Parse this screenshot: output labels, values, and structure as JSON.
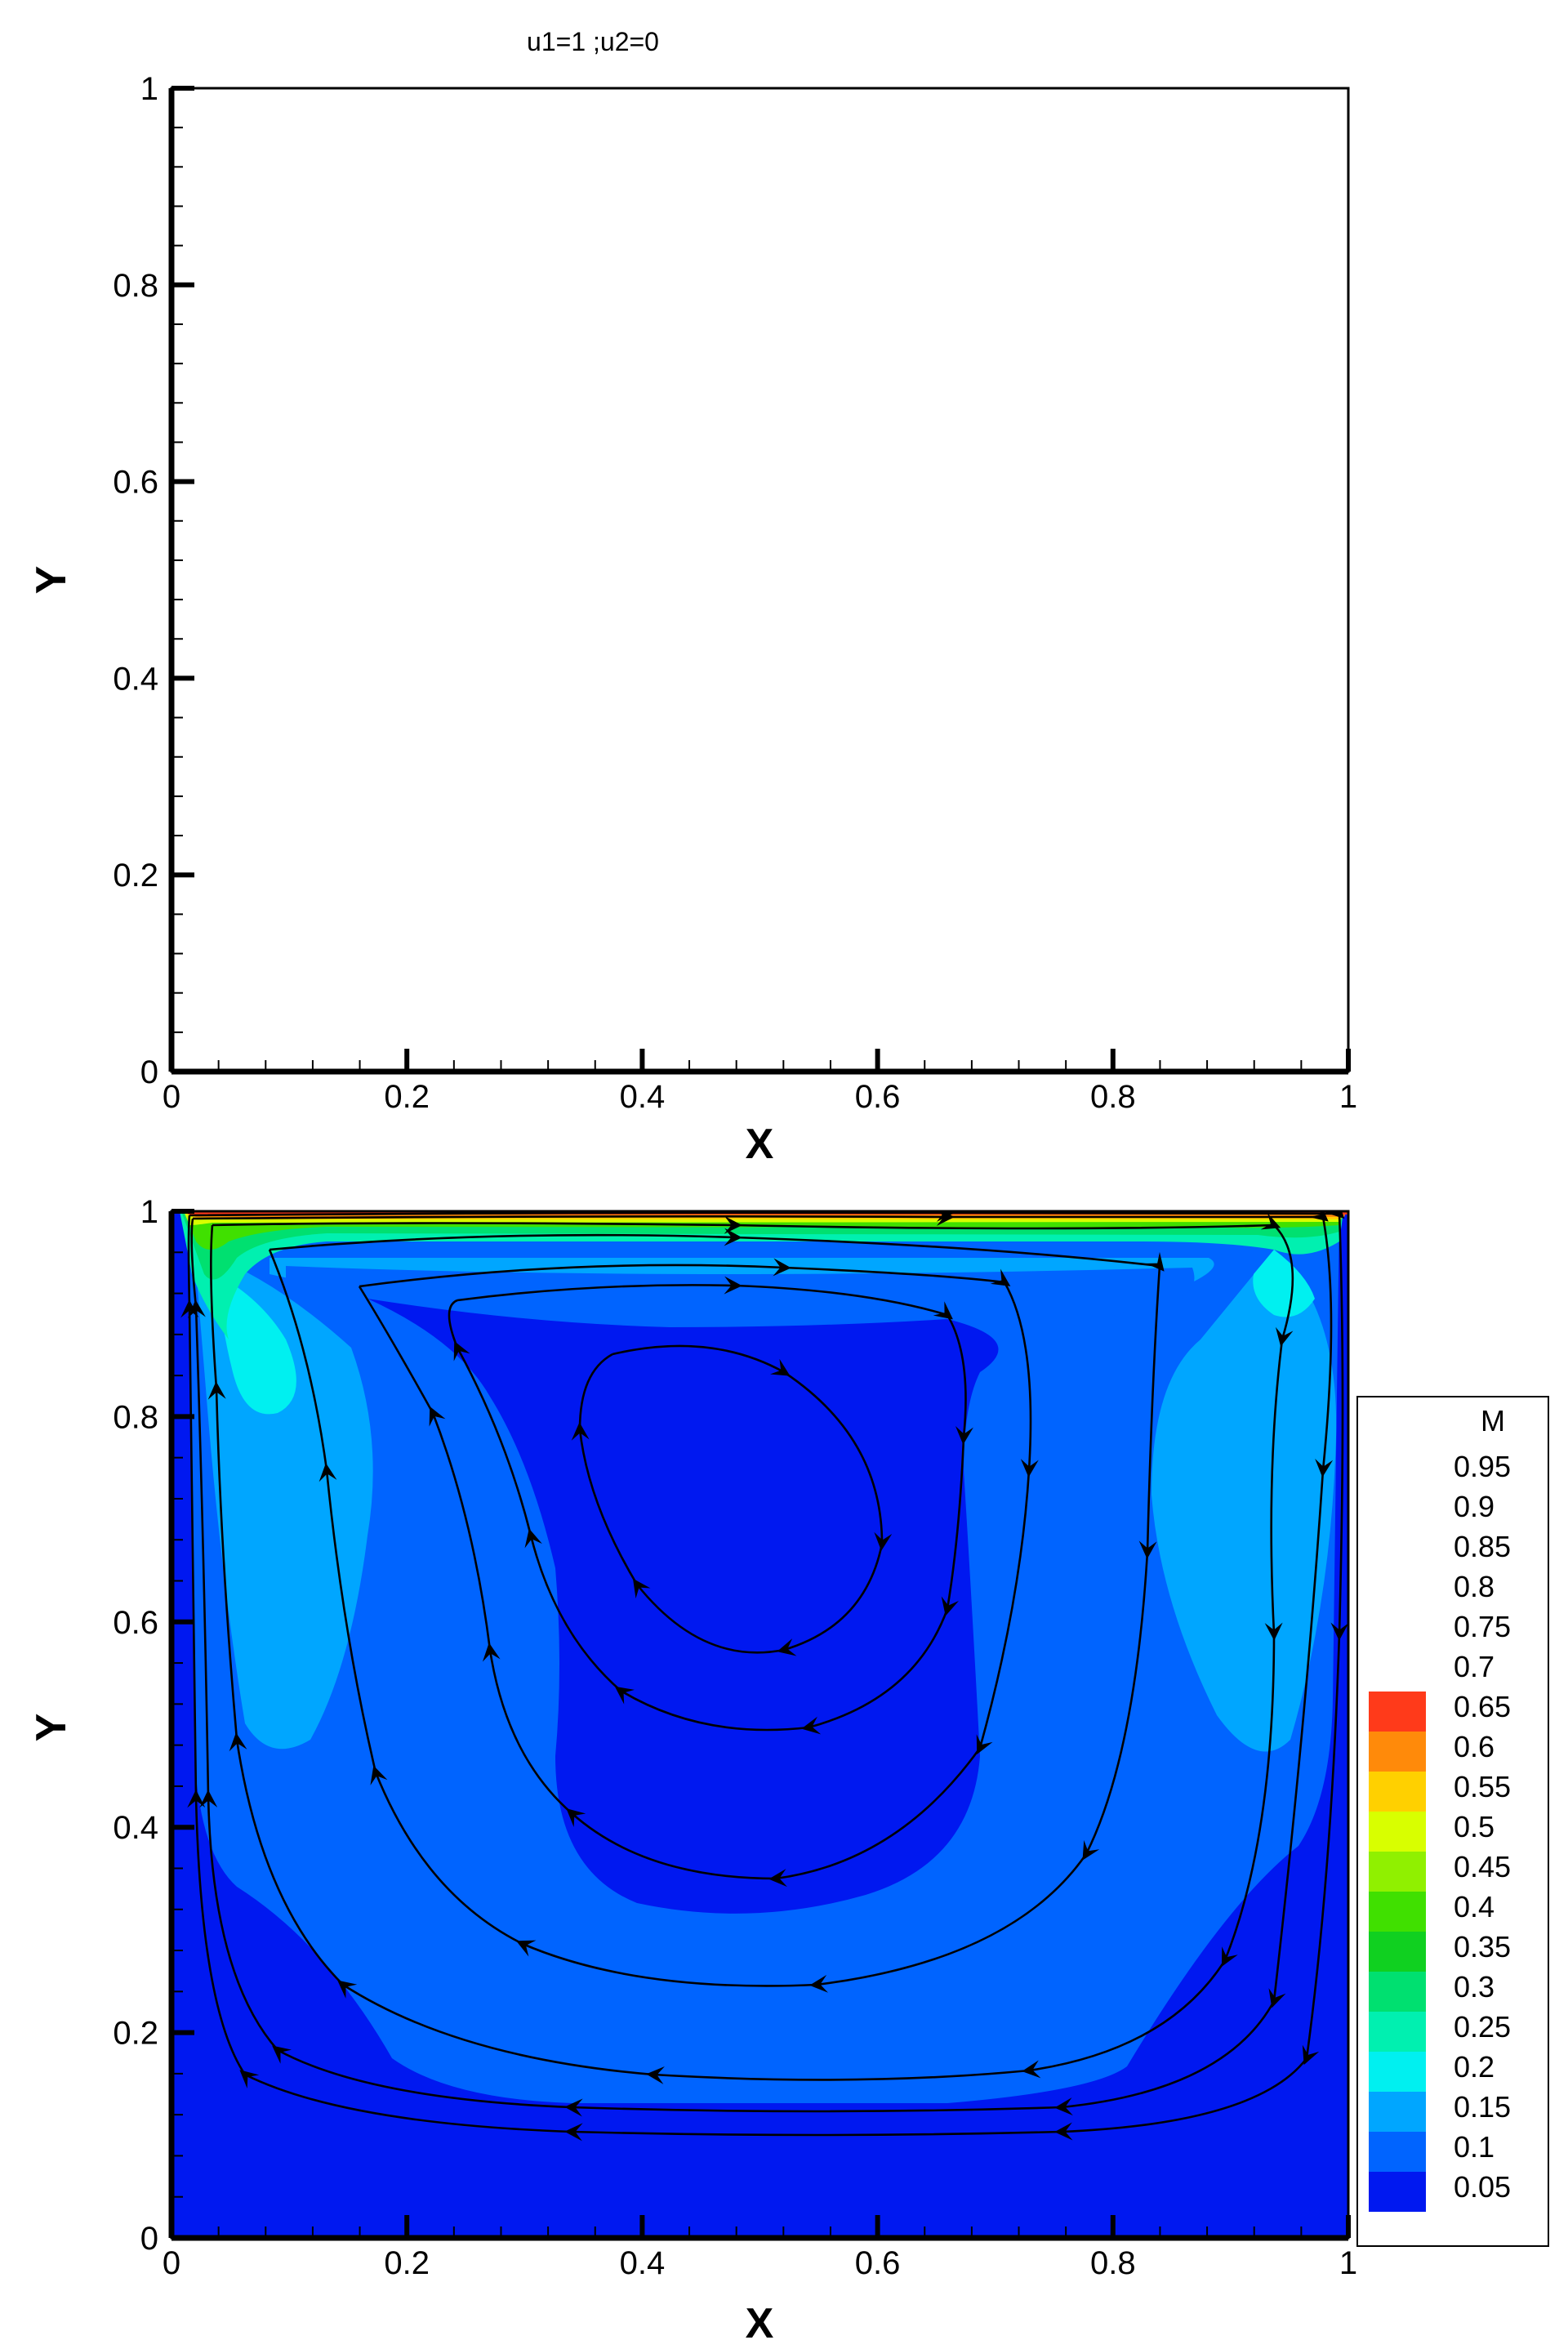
{
  "title": "u1=1 ;u2=0",
  "chart_data": [
    {
      "type": "line",
      "title": "u1=1 ;u2=0",
      "xlabel": "X",
      "ylabel": "Y",
      "xlim": [
        0,
        1
      ],
      "ylim": [
        0,
        1
      ],
      "xticks": [
        "0",
        "0.2",
        "0.4",
        "0.6",
        "0.8",
        "1"
      ],
      "yticks": [
        "0",
        "0.2",
        "0.4",
        "0.6",
        "0.8",
        "1"
      ],
      "series": []
    },
    {
      "type": "heatmap",
      "xlabel": "X",
      "ylabel": "Y",
      "xlim": [
        0,
        1
      ],
      "ylim": [
        0,
        1
      ],
      "xticks": [
        "0",
        "0.2",
        "0.4",
        "0.6",
        "0.8",
        "1"
      ],
      "yticks": [
        "0",
        "0.2",
        "0.4",
        "0.6",
        "0.8",
        "1"
      ],
      "legend": {
        "title": "M",
        "position": "right",
        "levels": [
          "0.95",
          "0.9",
          "0.85",
          "0.8",
          "0.75",
          "0.7",
          "0.65",
          "0.6",
          "0.55",
          "0.5",
          "0.45",
          "0.4",
          "0.35",
          "0.3",
          "0.25",
          "0.2",
          "0.15",
          "0.1",
          "0.05"
        ],
        "colors": [
          "",
          "",
          "",
          "",
          "",
          "",
          "#ff3a1a",
          "#ff8a0a",
          "#ffd000",
          "#d8ff00",
          "#90f000",
          "#40e000",
          "#10d020",
          "#00e070",
          "#00f0b0",
          "#00f0f0",
          "#00a6ff",
          "#0064ff",
          "#0018f0"
        ]
      },
      "contour_colors": {
        "0.05": "#0018f0",
        "0.1": "#0064ff",
        "0.15": "#00a6ff",
        "0.2": "#00f0f0",
        "0.25": "#00f0b0",
        "0.3": "#00e070",
        "0.35": "#10d020",
        "0.4": "#40e000",
        "0.45": "#90f000",
        "0.5": "#d8ff00",
        "0.55": "#ffd000",
        "0.6": "#ff8a0a",
        "0.65": "#ff3a1a"
      },
      "vortex_center": [
        0.5,
        0.78
      ]
    }
  ]
}
